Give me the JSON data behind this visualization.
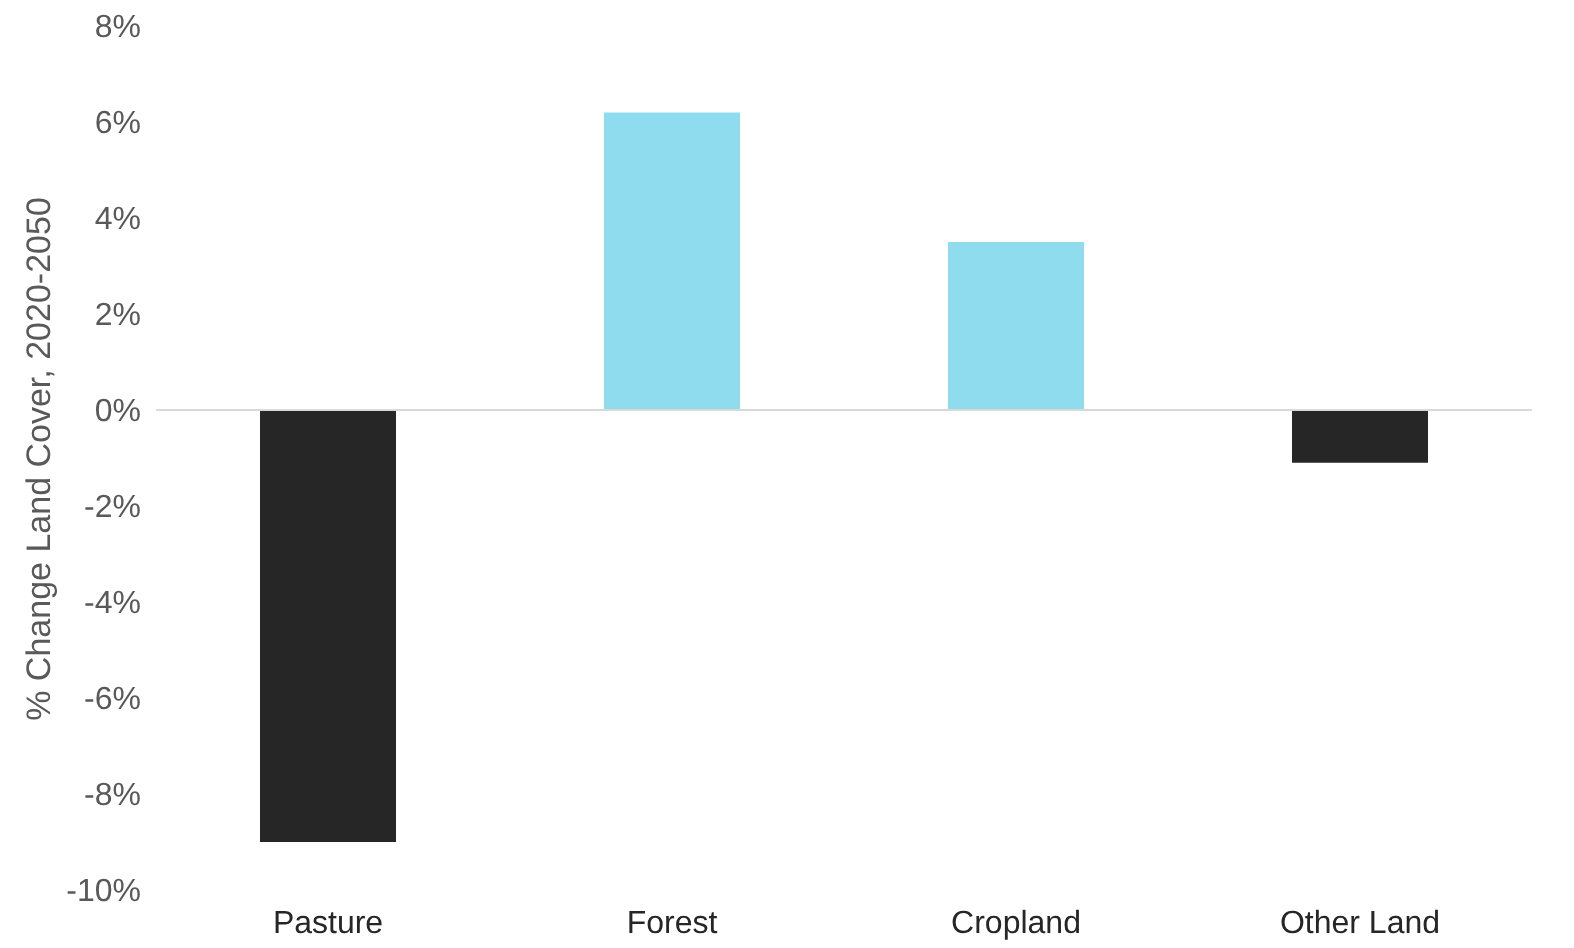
{
  "chart_data": {
    "type": "bar",
    "ylabel": "% Change  Land Cover, 2020-2050",
    "categories": [
      "Pasture",
      "Forest",
      "Cropland",
      "Other Land"
    ],
    "values": [
      -9.0,
      6.2,
      3.5,
      -1.1
    ],
    "colors": [
      "#262626",
      "#8fdcee",
      "#8fdcee",
      "#262626"
    ],
    "ylim": [
      -10,
      8
    ],
    "yticks": [
      {
        "value": -10,
        "label": "-10%"
      },
      {
        "value": -8,
        "label": "-8%"
      },
      {
        "value": -6,
        "label": "-6%"
      },
      {
        "value": -4,
        "label": "-4%"
      },
      {
        "value": -2,
        "label": "-2%"
      },
      {
        "value": 0,
        "label": "0%"
      },
      {
        "value": 2,
        "label": "2%"
      },
      {
        "value": 4,
        "label": "4%"
      },
      {
        "value": 6,
        "label": "6%"
      },
      {
        "value": 8,
        "label": "8%"
      }
    ],
    "ref_lines": [
      {
        "axis": "y",
        "value": 0,
        "color": "#d9d9d9"
      }
    ],
    "grid": false
  }
}
